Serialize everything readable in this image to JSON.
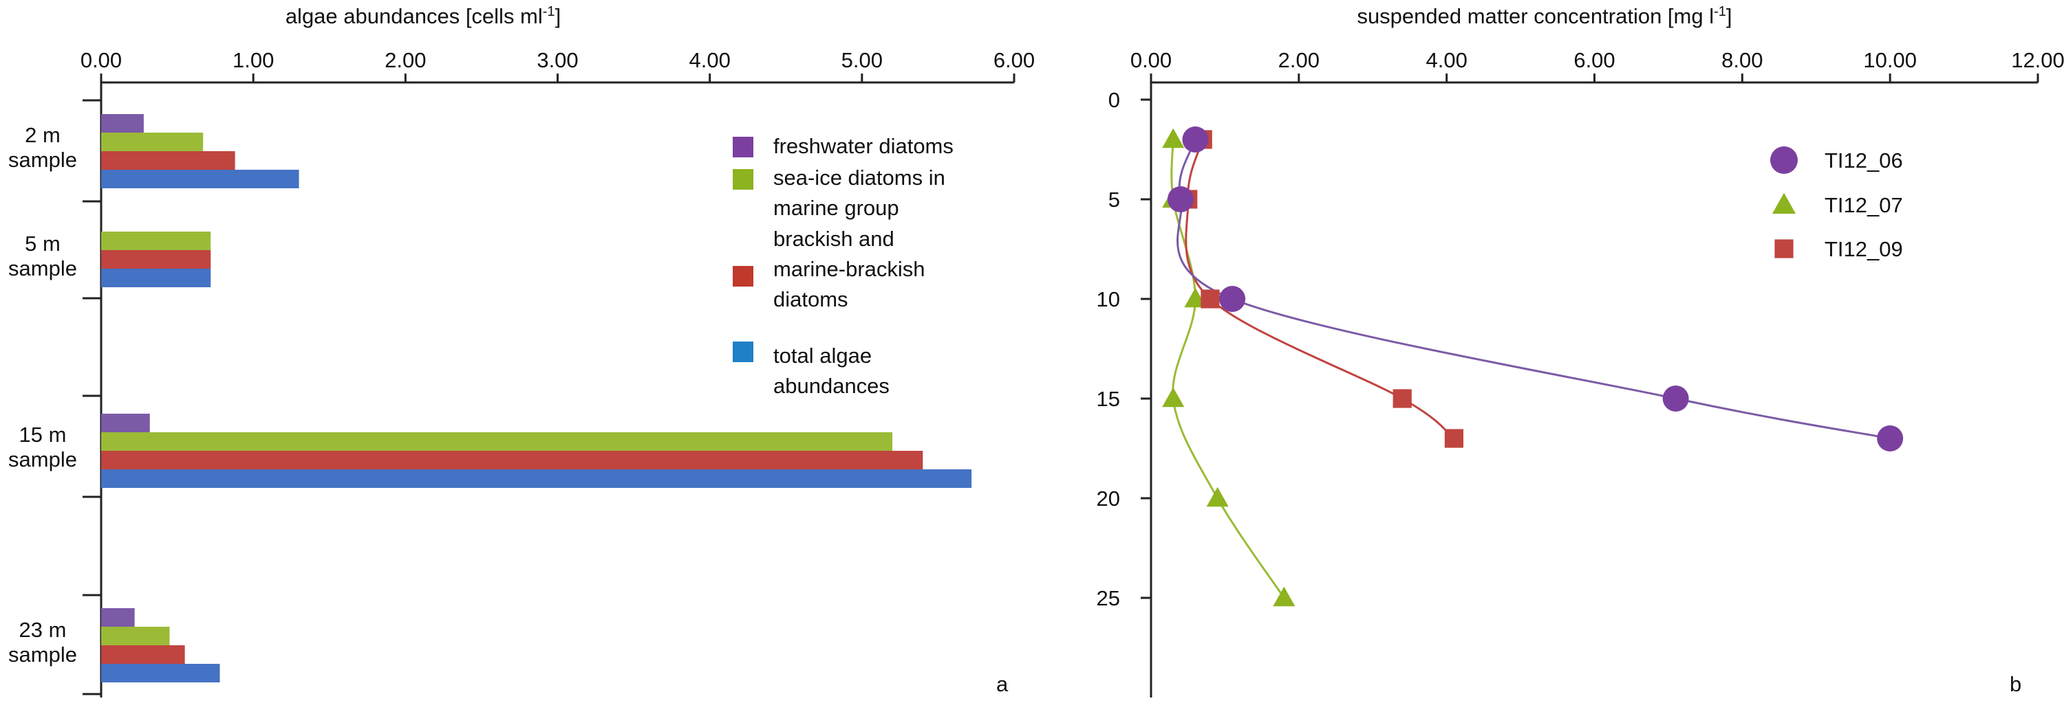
{
  "chart_data": [
    {
      "type": "bar",
      "orientation": "horizontal",
      "title": "",
      "xlabel_text": "algae abundances [cells ml",
      "xlabel_sup": "-1",
      "xlabel_end": "]",
      "ylabel": "",
      "panel_label": "a",
      "xlim": [
        0,
        6
      ],
      "x_ticks": [
        "0.00",
        "1.00",
        "2.00",
        "3.00",
        "4.00",
        "5.00",
        "6.00"
      ],
      "grid": false,
      "legend_position": "top-right",
      "categories": [
        {
          "line1": "2 m",
          "line2": "sample"
        },
        {
          "line1": "5 m",
          "line2": "sample"
        },
        {
          "line1": "15 m",
          "line2": "sample"
        },
        {
          "line1": "23 m",
          "line2": "sample"
        }
      ],
      "series": [
        {
          "legend": [
            "freshwater diatoms"
          ],
          "color": "#7b5aa6",
          "values": [
            0.28,
            null,
            0.32,
            0.22
          ]
        },
        {
          "legend": [
            "sea-ice diatoms in",
            "marine group"
          ],
          "color": "#9bbb37",
          "values": [
            0.67,
            0.72,
            5.2,
            0.45
          ]
        },
        {
          "legend": [
            "brackish and",
            "marine-brackish",
            "diatoms"
          ],
          "color": "#c0443f",
          "values": [
            0.88,
            0.72,
            5.4,
            0.55
          ]
        },
        {
          "legend": [
            "total algae",
            "abundances"
          ],
          "color": "#4472c4",
          "values": [
            1.3,
            0.72,
            5.72,
            0.78
          ]
        }
      ],
      "legend_swatch_colors": [
        "#7b3fa0",
        "#8db31f",
        "#c0392b",
        "#1f7fc7"
      ]
    },
    {
      "type": "line",
      "title": "",
      "xlabel_text": "suspended matter concentration [mg l",
      "xlabel_sup": "-1",
      "xlabel_end": "]",
      "ylabel": "",
      "panel_label": "b",
      "xlim": [
        0,
        12
      ],
      "ylim": [
        0,
        30
      ],
      "y_inverted": true,
      "x_ticks": [
        "0.00",
        "2.00",
        "4.00",
        "6.00",
        "8.00",
        "10.00",
        "12.00"
      ],
      "y_ticks": [
        "0",
        "5",
        "10",
        "15",
        "20",
        "25"
      ],
      "grid": false,
      "legend_position": "top-right",
      "series": [
        {
          "name": "TI12_06",
          "marker": "circle",
          "color": "#7b3fa0",
          "line_color": "#7b5aa6",
          "points": [
            [
              0.6,
              2
            ],
            [
              0.4,
              5
            ],
            [
              1.1,
              10
            ],
            [
              7.1,
              15
            ],
            [
              10.0,
              17
            ]
          ]
        },
        {
          "name": "TI12_07",
          "marker": "triangle",
          "color": "#8db31f",
          "line_color": "#9bbb37",
          "points": [
            [
              0.3,
              2
            ],
            [
              0.3,
              5
            ],
            [
              0.6,
              10
            ],
            [
              0.3,
              15
            ],
            [
              0.9,
              20
            ],
            [
              1.8,
              25
            ]
          ]
        },
        {
          "name": "TI12_09",
          "marker": "square",
          "color": "#c0443f",
          "line_color": "#c0443f",
          "points": [
            [
              0.7,
              2
            ],
            [
              0.5,
              5
            ],
            [
              0.8,
              10
            ],
            [
              3.4,
              15
            ],
            [
              4.1,
              17
            ]
          ]
        }
      ]
    }
  ]
}
